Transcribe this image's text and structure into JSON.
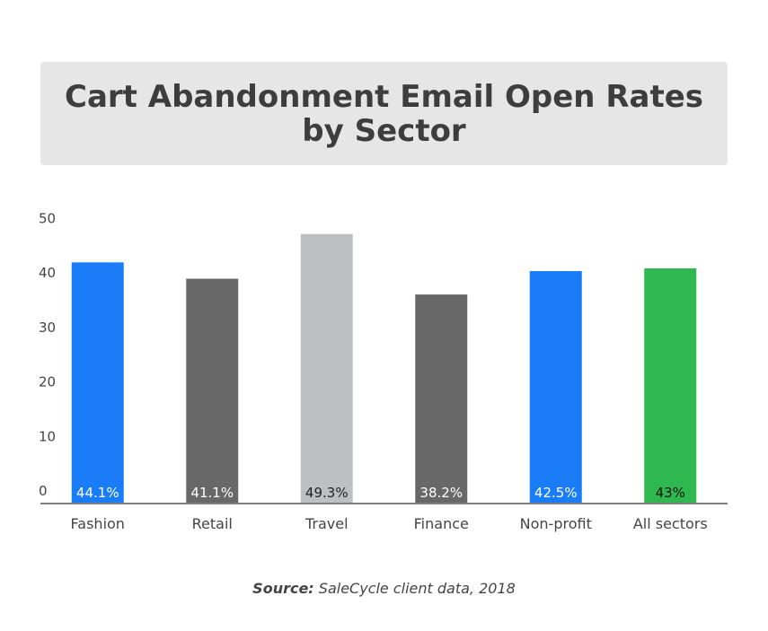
{
  "title": {
    "line1": "Cart Abandonment Email Open Rates",
    "line2": "by Sector"
  },
  "source": {
    "label": "Source:",
    "text": "SaleCycle client data, 2018"
  },
  "colors": {
    "blue": "#1a7df7",
    "dark_gray": "#686868",
    "light_gray": "#bdbfc1",
    "green": "#2eb84f",
    "axis": "#555555",
    "tick_text": "#444444"
  },
  "chart_data": {
    "type": "bar",
    "categories": [
      "Fashion",
      "Retail",
      "Travel",
      "Finance",
      "Non-profit",
      "All sectors"
    ],
    "values": [
      44.1,
      41.1,
      49.3,
      38.2,
      42.5,
      43
    ],
    "data_labels": [
      "44.1%",
      "41.1%",
      "49.3%",
      "38.2%",
      "42.5%",
      "43%"
    ],
    "bar_colors": [
      "#1a7df7",
      "#686868",
      "#bdbfc1",
      "#686868",
      "#1a7df7",
      "#2eb84f"
    ],
    "label_colors": [
      "#ffffff",
      "#ffffff",
      "#222222",
      "#ffffff",
      "#ffffff",
      "#111111"
    ],
    "yticks": [
      0,
      10,
      20,
      30,
      40,
      50
    ],
    "ylim": [
      0,
      50
    ],
    "title": "Cart Abandonment Email Open Rates by Sector",
    "xlabel": "",
    "ylabel": "",
    "grid": false,
    "legend": "none"
  }
}
